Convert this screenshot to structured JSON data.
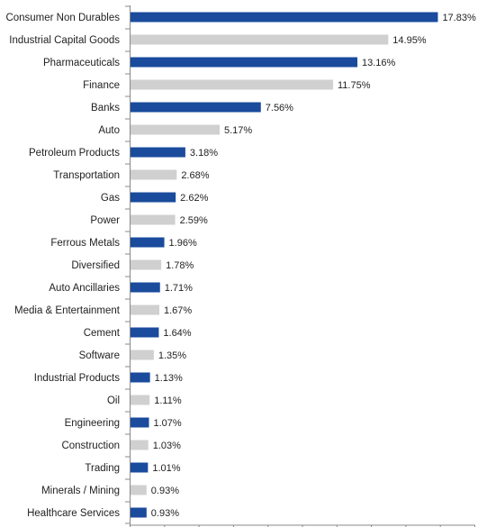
{
  "chart_data": {
    "type": "bar",
    "orientation": "horizontal",
    "categories": [
      "Consumer Non Durables",
      "Industrial Capital Goods",
      "Pharmaceuticals",
      "Finance",
      "Banks",
      "Auto",
      "Petroleum Products",
      "Transportation",
      "Gas",
      "Power",
      "Ferrous Metals",
      "Diversified",
      "Auto Ancillaries",
      "Media & Entertainment",
      "Cement",
      "Software",
      "Industrial Products",
      "Oil",
      "Engineering",
      "Construction",
      "Trading",
      "Minerals / Mining",
      "Healthcare Services"
    ],
    "values": [
      17.83,
      14.95,
      13.16,
      11.75,
      7.56,
      5.17,
      3.18,
      2.68,
      2.62,
      2.59,
      1.96,
      1.78,
      1.71,
      1.67,
      1.64,
      1.35,
      1.13,
      1.11,
      1.07,
      1.03,
      1.01,
      0.93,
      0.93
    ],
    "value_labels": [
      "17.83%",
      "14.95%",
      "13.16%",
      "11.75%",
      "7.56%",
      "5.17%",
      "3.18%",
      "2.68%",
      "2.62%",
      "2.59%",
      "1.96%",
      "1.78%",
      "1.71%",
      "1.67%",
      "1.64%",
      "1.35%",
      "1.13%",
      "1.11%",
      "1.07%",
      "1.03%",
      "1.01%",
      "0.93%",
      "0.93%"
    ],
    "xlim": [
      0,
      20
    ],
    "grid": false,
    "legend": "none",
    "colors": {
      "primary": "#1a4b9c",
      "secondary": "#d0d0d0",
      "axis": "#888888"
    },
    "color_pattern": "alternating, first bar primary"
  }
}
